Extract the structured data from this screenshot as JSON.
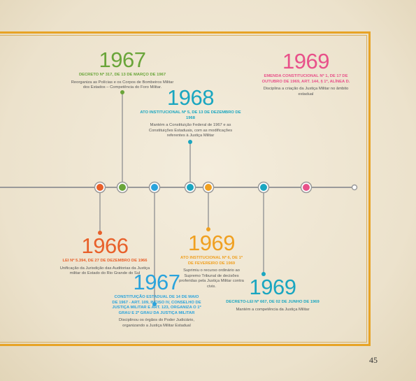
{
  "events": [
    {
      "year": "1967",
      "color": "#6aa53a",
      "heading": "DECRETO Nº 317, DE 13 DE MARÇO DE 1967",
      "text": "Reorganiza as Polícias e os Corpos de Bombeiros Militar dos Estados – Competência do Foro Militar."
    },
    {
      "year": "1968",
      "color": "#1aa6c0",
      "heading": "ATO INSTITUCIONAL Nº 5, DE 13 DE DEZEMBRO DE 1968",
      "text": "Mantém a Constituição Federal de 1967 e as Constituições Estaduais, com as modificações referentes à Justiça Militar"
    },
    {
      "year": "1969",
      "color": "#e8518a",
      "heading": "EMENDA CONSTITUCIONAL Nº 1, DE 17 DE OUTUBRO DE 1969, ART. 144, § 1º, ALÍNEA D.",
      "text": "Disciplina a criação da Justiça Militar no âmbito estadual"
    },
    {
      "year": "1966",
      "color": "#e8602a",
      "heading": "LEI Nº 5.394, DE 27 DE DEZEMBRO DE 1966",
      "text": "Unificação da Jurisdição das Auditorias da Justiça militar do Estado do Rio Grande do Sul"
    },
    {
      "year": "1967",
      "color": "#2aa3dc",
      "heading": "CONSTITUIÇÃO ESTADUAL DE 14 DE MAIO DE 1967 - ART. 109, INCISO IV, CONSELHO DE JUSTIÇA MILITAR E ART. 123, ORGANIZA O 1º GRAU E 2º GRAU DA JUSTIÇA MILITAR",
      "text": "Disciplinou os órgãos do Poder Judiciário, organizando a Justiça Militar Estadual"
    },
    {
      "year": "1969",
      "color": "#f0a020",
      "heading": "ATO INSTITUCIONAL Nº 6, DE 1º DE FEVEREIRO DE 1969",
      "text": "Suprimiu o recurso ordinário ao Supremo Tribunal de decisões proferidas pela Justiça Militar contra civis."
    },
    {
      "year": "1969",
      "color": "#1aa6c0",
      "heading": "DECRETO-LEI Nº 667, DE 02 DE JUNHO DE 1969",
      "text": "Mantém a competência da Justiça Militar"
    }
  ],
  "page_number": "45"
}
